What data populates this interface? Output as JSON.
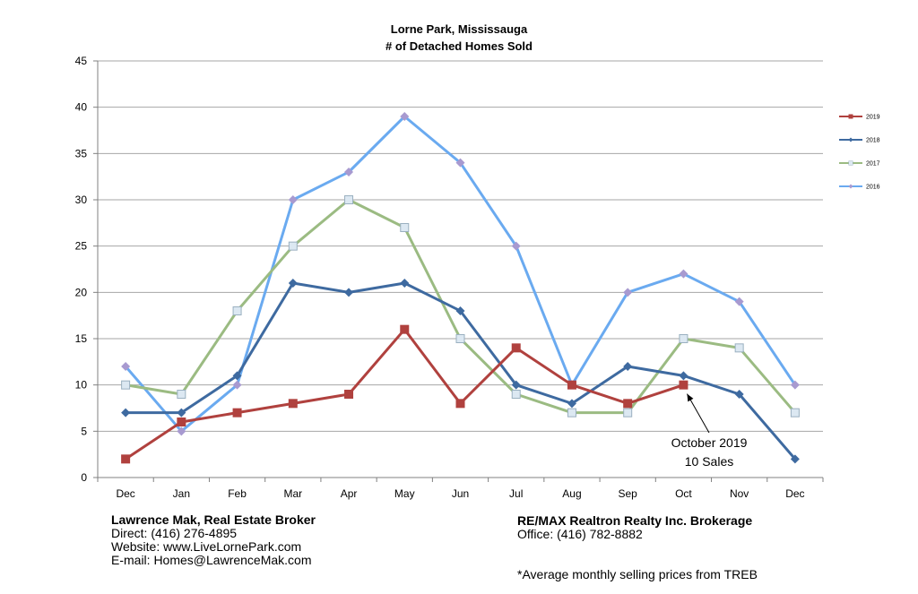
{
  "chart_data": {
    "type": "line",
    "title": "Lorne Park, Mississauga",
    "subtitle": "# of Detached Homes Sold",
    "categories": [
      "Dec",
      "Jan",
      "Feb",
      "Mar",
      "Apr",
      "May",
      "Jun",
      "Jul",
      "Aug",
      "Sep",
      "Oct",
      "Nov",
      "Dec"
    ],
    "ylim": [
      0,
      45
    ],
    "yticks": [
      0,
      5,
      10,
      15,
      20,
      25,
      30,
      35,
      40,
      45
    ],
    "grid": true,
    "legend_position": "right",
    "series": [
      {
        "name": "2019",
        "color": "#b0413e",
        "marker": "square",
        "values": [
          2,
          6,
          7,
          8,
          9,
          16,
          8,
          14,
          10,
          8,
          10,
          null,
          null
        ]
      },
      {
        "name": "2018",
        "color": "#3e6aa0",
        "marker": "diamond",
        "values": [
          7,
          7,
          11,
          21,
          20,
          21,
          18,
          10,
          8,
          12,
          11,
          9,
          2
        ]
      },
      {
        "name": "2017",
        "color": "#9bbb82",
        "marker": "square-light",
        "values": [
          10,
          9,
          18,
          25,
          30,
          27,
          15,
          9,
          7,
          7,
          15,
          14,
          7
        ]
      },
      {
        "name": "2016",
        "color": "#6aaaf0",
        "marker": "diamond-purple",
        "values": [
          12,
          5,
          10,
          30,
          33,
          39,
          34,
          25,
          10,
          20,
          22,
          19,
          10
        ]
      }
    ],
    "annotation": {
      "lines": [
        "October 2019",
        "10 Sales"
      ],
      "category_index": 10,
      "value": 10
    }
  },
  "footer": {
    "left": {
      "name": "Lawrence Mak, Real Estate Broker",
      "direct": "Direct:  (416) 276-4895",
      "website": "Website:  www.LiveLornePark.com",
      "email": "E-mail:  Homes@LawrenceMak.com"
    },
    "right": {
      "brokerage": "RE/MAX Realtron Realty Inc. Brokerage",
      "office": "Office: (416) 782-8882"
    },
    "note": "*Average monthly selling prices from TREB"
  }
}
